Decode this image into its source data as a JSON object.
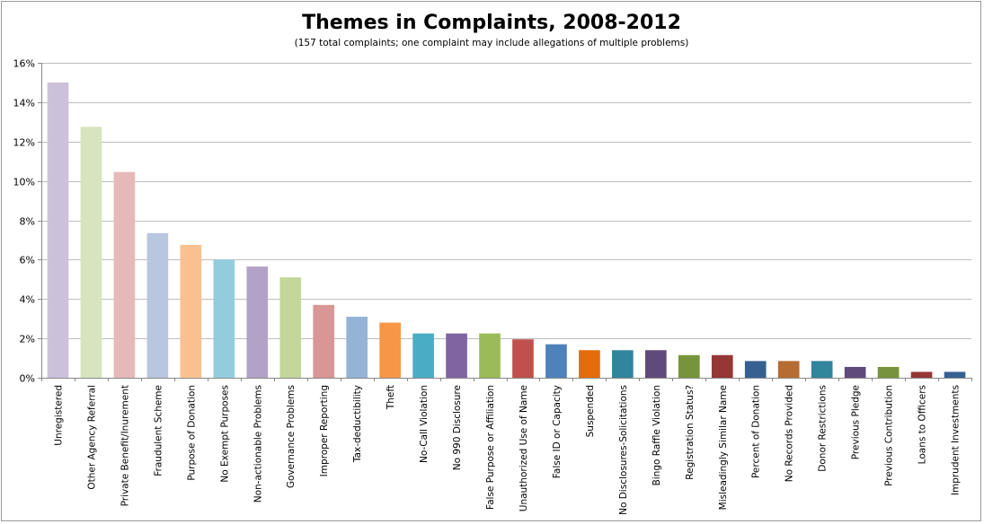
{
  "chart_data": {
    "type": "bar",
    "title": "Themes in Complaints, 2008-2012",
    "subtitle": "(157 total complaints; one complaint may include allegations of multiple problems)",
    "xlabel": "",
    "ylabel": "",
    "ylim": [
      0,
      16
    ],
    "y_ticks": [
      0,
      2,
      4,
      6,
      8,
      10,
      12,
      14,
      16
    ],
    "y_tick_labels": [
      "0%",
      "2%",
      "4%",
      "6%",
      "8%",
      "10%",
      "12%",
      "14%",
      "16%"
    ],
    "grid": true,
    "legend": "none",
    "categories": [
      "Unregistered",
      "Other Agency Referral",
      "Private Benefit/Inurement",
      "Fraudulent Scheme",
      "Purpose of Donation",
      "No Exempt Purposes",
      "Non-actionable Problems",
      "Governance Problems",
      "Improper Reporting",
      "Tax-deductibility",
      "Theft",
      "No-Call Violation",
      "No 990 Disclosure",
      "False Purpose or Affiliation",
      "Unauthorized Use of Name",
      "False ID or Capacity",
      "Suspended",
      "No Disclosures-Solicitations",
      "Bingo Raffle Violation",
      "Registration Status?",
      "Misleadingly Similar Name",
      "Percent of Donation",
      "No Records Provided",
      "Donor Restrictions",
      "Previous Pledge",
      "Previous Contribution",
      "Loans to Officers",
      "Imprudent Investments"
    ],
    "values": [
      15.0,
      12.75,
      10.45,
      7.35,
      6.75,
      6.0,
      5.65,
      5.1,
      3.7,
      3.1,
      2.8,
      2.25,
      2.25,
      2.25,
      1.95,
      1.7,
      1.4,
      1.4,
      1.4,
      1.15,
      1.15,
      0.85,
      0.85,
      0.85,
      0.55,
      0.55,
      0.3,
      0.3
    ],
    "colors": [
      "#ccc1da",
      "#d7e4bd",
      "#e6b9b8",
      "#b9c6e0",
      "#fac090",
      "#93cddd",
      "#b3a2c7",
      "#c3d69b",
      "#d99694",
      "#95b3d7",
      "#f79646",
      "#4bacc6",
      "#8064a2",
      "#9bbb59",
      "#c0504d",
      "#4f81bd",
      "#e46c0a",
      "#31859c",
      "#604a7b",
      "#77933c",
      "#953735",
      "#376092",
      "#b66d31",
      "#31859c",
      "#604a7b",
      "#77933c",
      "#953735",
      "#376092"
    ]
  }
}
